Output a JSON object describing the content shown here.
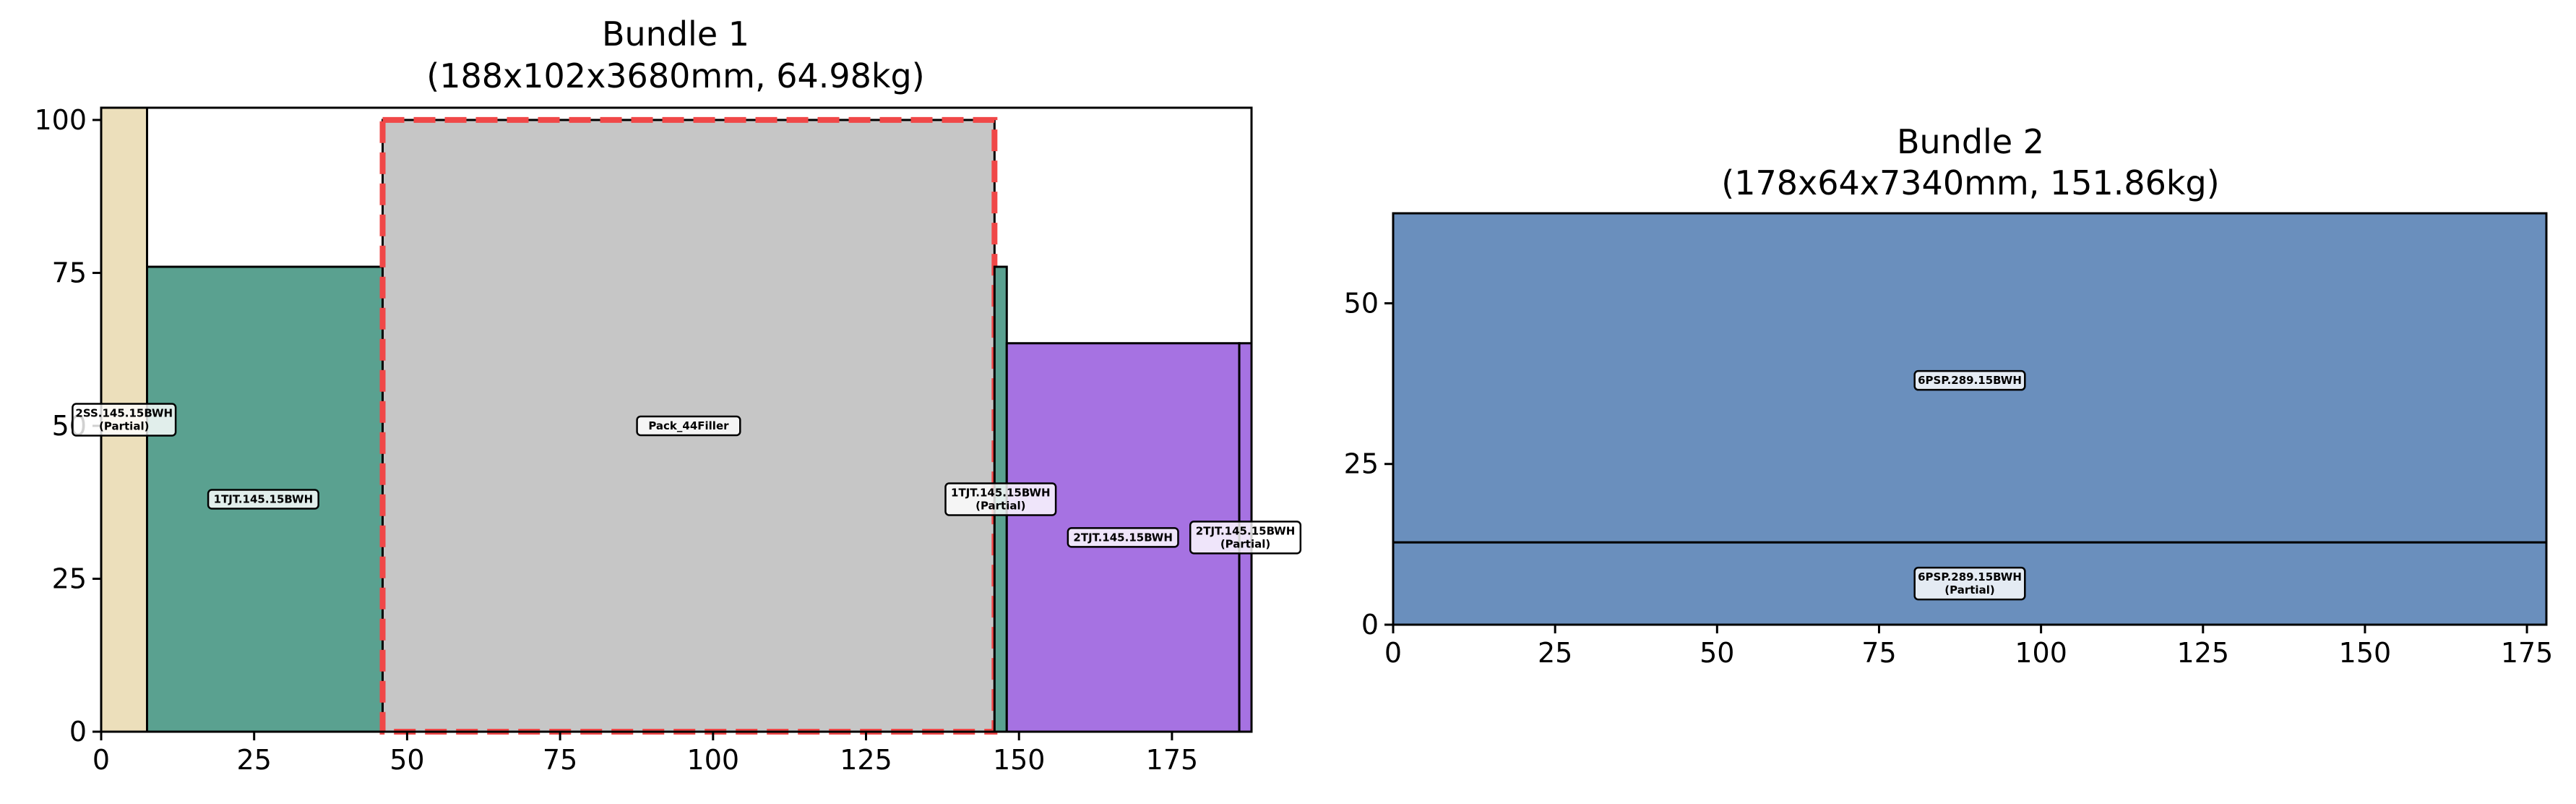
{
  "chart_data": [
    {
      "type": "bar",
      "title": "Bundle 1",
      "subtitle": "(188x102x3680mm, 64.98kg)",
      "xlim": [
        0,
        188
      ],
      "ylim": [
        0,
        102
      ],
      "xticks": [
        0,
        25,
        50,
        75,
        100,
        125,
        150,
        175
      ],
      "yticks": [
        0,
        25,
        50,
        75,
        100
      ],
      "grid": false,
      "items": [
        {
          "label": "2SS.145.15BWH",
          "partial": "(Partial)",
          "x": 0,
          "y": 0,
          "w": 7.5,
          "h": 102,
          "color": "#ecdfbb",
          "label_x": 3.75,
          "label_y": 51
        },
        {
          "label": "1TJT.145.15BWH",
          "partial": "",
          "x": 7.5,
          "y": 0,
          "w": 38.5,
          "h": 76,
          "color": "#5aa190",
          "label_x": 26.5,
          "label_y": 38
        },
        {
          "label": "Pack_44Filler",
          "partial": "",
          "x": 46,
          "y": 0,
          "w": 100,
          "h": 100,
          "color": "#c6c6c6",
          "label_x": 96,
          "label_y": 50,
          "dashed_outline": true
        },
        {
          "label": "1TJT.145.15BWH",
          "partial": "(Partial)",
          "x": 146,
          "y": 0,
          "w": 2,
          "h": 76,
          "color": "#5aa190",
          "label_x": 147,
          "label_y": 38
        },
        {
          "label": "2TJT.145.15BWH",
          "partial": "",
          "x": 148,
          "y": 0,
          "w": 38,
          "h": 63.5,
          "color": "#a672e2",
          "label_x": 167,
          "label_y": 31.75
        },
        {
          "label": "2TJT.145.15BWH",
          "partial": "(Partial)",
          "x": 186,
          "y": 0,
          "w": 2,
          "h": 63.5,
          "color": "#a672e2",
          "label_x": 187,
          "label_y": 31.75
        }
      ]
    },
    {
      "type": "bar",
      "title": "Bundle 2",
      "subtitle": "(178x64x7340mm, 151.86kg)",
      "xlim": [
        0,
        178
      ],
      "ylim": [
        0,
        64
      ],
      "xticks": [
        0,
        25,
        50,
        75,
        100,
        125,
        150,
        175
      ],
      "yticks": [
        0,
        25,
        50
      ],
      "grid": false,
      "items": [
        {
          "label": "6PSP.289.15BWH",
          "partial": "",
          "x": 0,
          "y": 12.8,
          "w": 178,
          "h": 51.2,
          "color": "#6a8fbd",
          "label_x": 89,
          "label_y": 38
        },
        {
          "label": "6PSP.289.15BWH",
          "partial": "(Partial)",
          "x": 0,
          "y": 0,
          "w": 178,
          "h": 12.8,
          "color": "#6a8fbd",
          "label_x": 89,
          "label_y": 6.4
        }
      ]
    }
  ]
}
